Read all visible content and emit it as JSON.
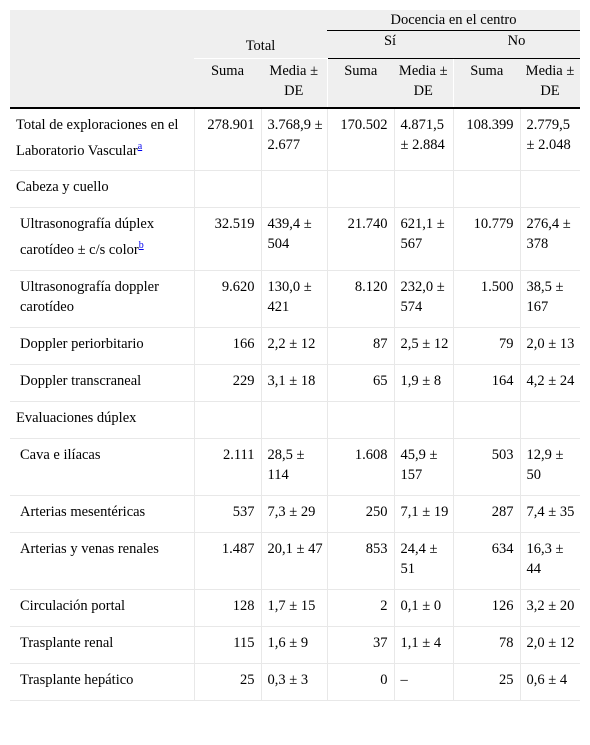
{
  "header": {
    "group_label": "Docencia en el centro",
    "total_label": "Total",
    "si_label": "Sí",
    "no_label": "No",
    "col_suma": "Suma",
    "col_media": "Media ± DE"
  },
  "rows": [
    {
      "type": "data",
      "label": "Total de exploraciones en el Laboratorio Vascular",
      "note": "a",
      "total_suma": "278.901",
      "total_media": "3.768,9 ± 2.677",
      "si_suma": "170.502",
      "si_media": "4.871,5 ± 2.884",
      "no_suma": "108.399",
      "no_media": "2.779,5 ± 2.048"
    },
    {
      "type": "section",
      "label": "Cabeza y cuello"
    },
    {
      "type": "data",
      "label": "Ultrasonografía dúplex carotídeo ± c/s color",
      "note": "b",
      "total_suma": "32.519",
      "total_media": "439,4 ± 504",
      "si_suma": "21.740",
      "si_media": "621,1 ± 567",
      "no_suma": "10.779",
      "no_media": "276,4 ± 378"
    },
    {
      "type": "data",
      "label": "Ultrasonografía doppler carotídeo",
      "total_suma": "9.620",
      "total_media": "130,0 ± 421",
      "si_suma": "8.120",
      "si_media": "232,0 ± 574",
      "no_suma": "1.500",
      "no_media": "38,5 ± 167"
    },
    {
      "type": "data",
      "label": "Doppler periorbitario",
      "total_suma": "166",
      "total_media": "2,2 ± 12",
      "si_suma": "87",
      "si_media": "2,5 ± 12",
      "no_suma": "79",
      "no_media": "2,0 ± 13"
    },
    {
      "type": "data",
      "label": "Doppler transcraneal",
      "total_suma": "229",
      "total_media": "3,1 ± 18",
      "si_suma": "65",
      "si_media": "1,9 ± 8",
      "no_suma": "164",
      "no_media": "4,2 ± 24"
    },
    {
      "type": "section",
      "label": "Evaluaciones dúplex"
    },
    {
      "type": "data",
      "label": "Cava e ilíacas",
      "total_suma": "2.111",
      "total_media": "28,5 ± 114",
      "si_suma": "1.608",
      "si_media": "45,9 ± 157",
      "no_suma": "503",
      "no_media": "12,9 ± 50"
    },
    {
      "type": "data",
      "label": "Arterias mesentéricas",
      "total_suma": "537",
      "total_media": "7,3 ± 29",
      "si_suma": "250",
      "si_media": "7,1 ± 19",
      "no_suma": "287",
      "no_media": "7,4 ± 35"
    },
    {
      "type": "data",
      "label": "Arterias y venas renales",
      "total_suma": "1.487",
      "total_media": "20,1 ± 47",
      "si_suma": "853",
      "si_media": "24,4 ± 51",
      "no_suma": "634",
      "no_media": "16,3 ± 44"
    },
    {
      "type": "data",
      "label": "Circulación portal",
      "total_suma": "128",
      "total_media": "1,7 ± 15",
      "si_suma": "2",
      "si_media": "0,1 ± 0",
      "no_suma": "126",
      "no_media": "3,2 ± 20"
    },
    {
      "type": "data",
      "label": "Trasplante renal",
      "total_suma": "115",
      "total_media": "1,6 ± 9",
      "si_suma": "37",
      "si_media": "1,1 ± 4",
      "no_suma": "78",
      "no_media": "2,0 ± 12"
    },
    {
      "type": "data",
      "label": "Trasplante hepático",
      "total_suma": "25",
      "total_media": "0,3 ± 3",
      "si_suma": "0",
      "si_media": "–",
      "no_suma": "25",
      "no_media": "0,6 ± 4"
    }
  ]
}
